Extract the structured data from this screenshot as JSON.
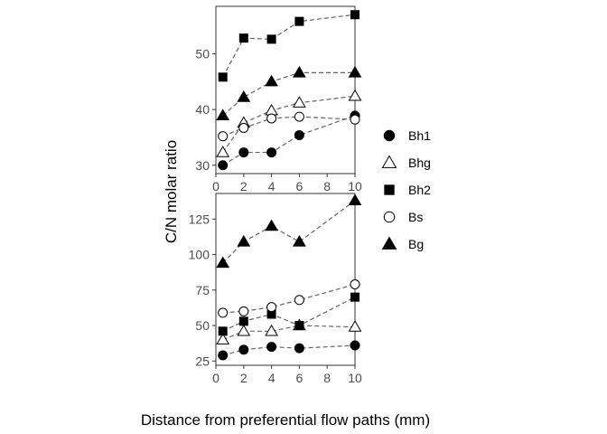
{
  "chart_data": {
    "type": "scatter",
    "xlabel": "Distance from preferential flow paths (mm)",
    "ylabel": "C/N molar ratio",
    "legend_position": "right",
    "legend": [
      {
        "name": "Bh1",
        "shape": "circle",
        "fill": "filled"
      },
      {
        "name": "Bhg",
        "shape": "triangle",
        "fill": "open"
      },
      {
        "name": "Bh2",
        "shape": "square",
        "fill": "filled"
      },
      {
        "name": "Bs",
        "shape": "circle",
        "fill": "open"
      },
      {
        "name": "Bg",
        "shape": "triangle",
        "fill": "filled"
      }
    ],
    "panels": [
      {
        "id": "top",
        "xlim": [
          0,
          10
        ],
        "ylim": [
          28.5,
          58.5
        ],
        "xticks": [
          "0",
          "2",
          "4",
          "6",
          "8",
          "10"
        ],
        "yticks": [
          "30",
          "40",
          "50"
        ],
        "x": [
          0.5,
          2,
          4,
          6,
          10
        ],
        "series": [
          {
            "name": "Bh1",
            "values": [
              30.0,
              32.3,
              32.3,
              35.4,
              38.9
            ]
          },
          {
            "name": "Bhg",
            "values": [
              32.3,
              37.6,
              39.8,
              41.2,
              42.4
            ]
          },
          {
            "name": "Bh2",
            "values": [
              45.8,
              52.8,
              52.6,
              55.8,
              57.0
            ]
          },
          {
            "name": "Bs",
            "values": [
              35.2,
              36.7,
              38.4,
              38.7,
              38.2
            ]
          },
          {
            "name": "Bg",
            "values": [
              38.9,
              42.2,
              45.0,
              46.6,
              46.6
            ]
          }
        ]
      },
      {
        "id": "bottom",
        "xlim": [
          0,
          10
        ],
        "ylim": [
          22,
          143
        ],
        "xticks": [
          "0",
          "2",
          "4",
          "6",
          "8",
          "10"
        ],
        "yticks": [
          "25",
          "50",
          "75",
          "100",
          "125"
        ],
        "x": [
          0.5,
          2,
          4,
          6,
          10
        ],
        "series": [
          {
            "name": "Bh1",
            "values": [
              29,
              33,
              35,
              34,
              36
            ]
          },
          {
            "name": "Bhg",
            "values": [
              40,
              46,
              46,
              50,
              49
            ]
          },
          {
            "name": "Bh2",
            "values": [
              46,
              53,
              58,
              50,
              70
            ]
          },
          {
            "name": "Bs",
            "values": [
              59,
              60,
              63,
              68,
              79
            ]
          },
          {
            "name": "Bg",
            "values": [
              94,
              109,
              120,
              109,
              138
            ]
          }
        ]
      }
    ]
  },
  "colors": {
    "point_fill": "#000000",
    "point_open_fill": "#ffffff",
    "line": "#666666",
    "panel_border": "#333333",
    "tick_text": "#4d4d4d"
  }
}
